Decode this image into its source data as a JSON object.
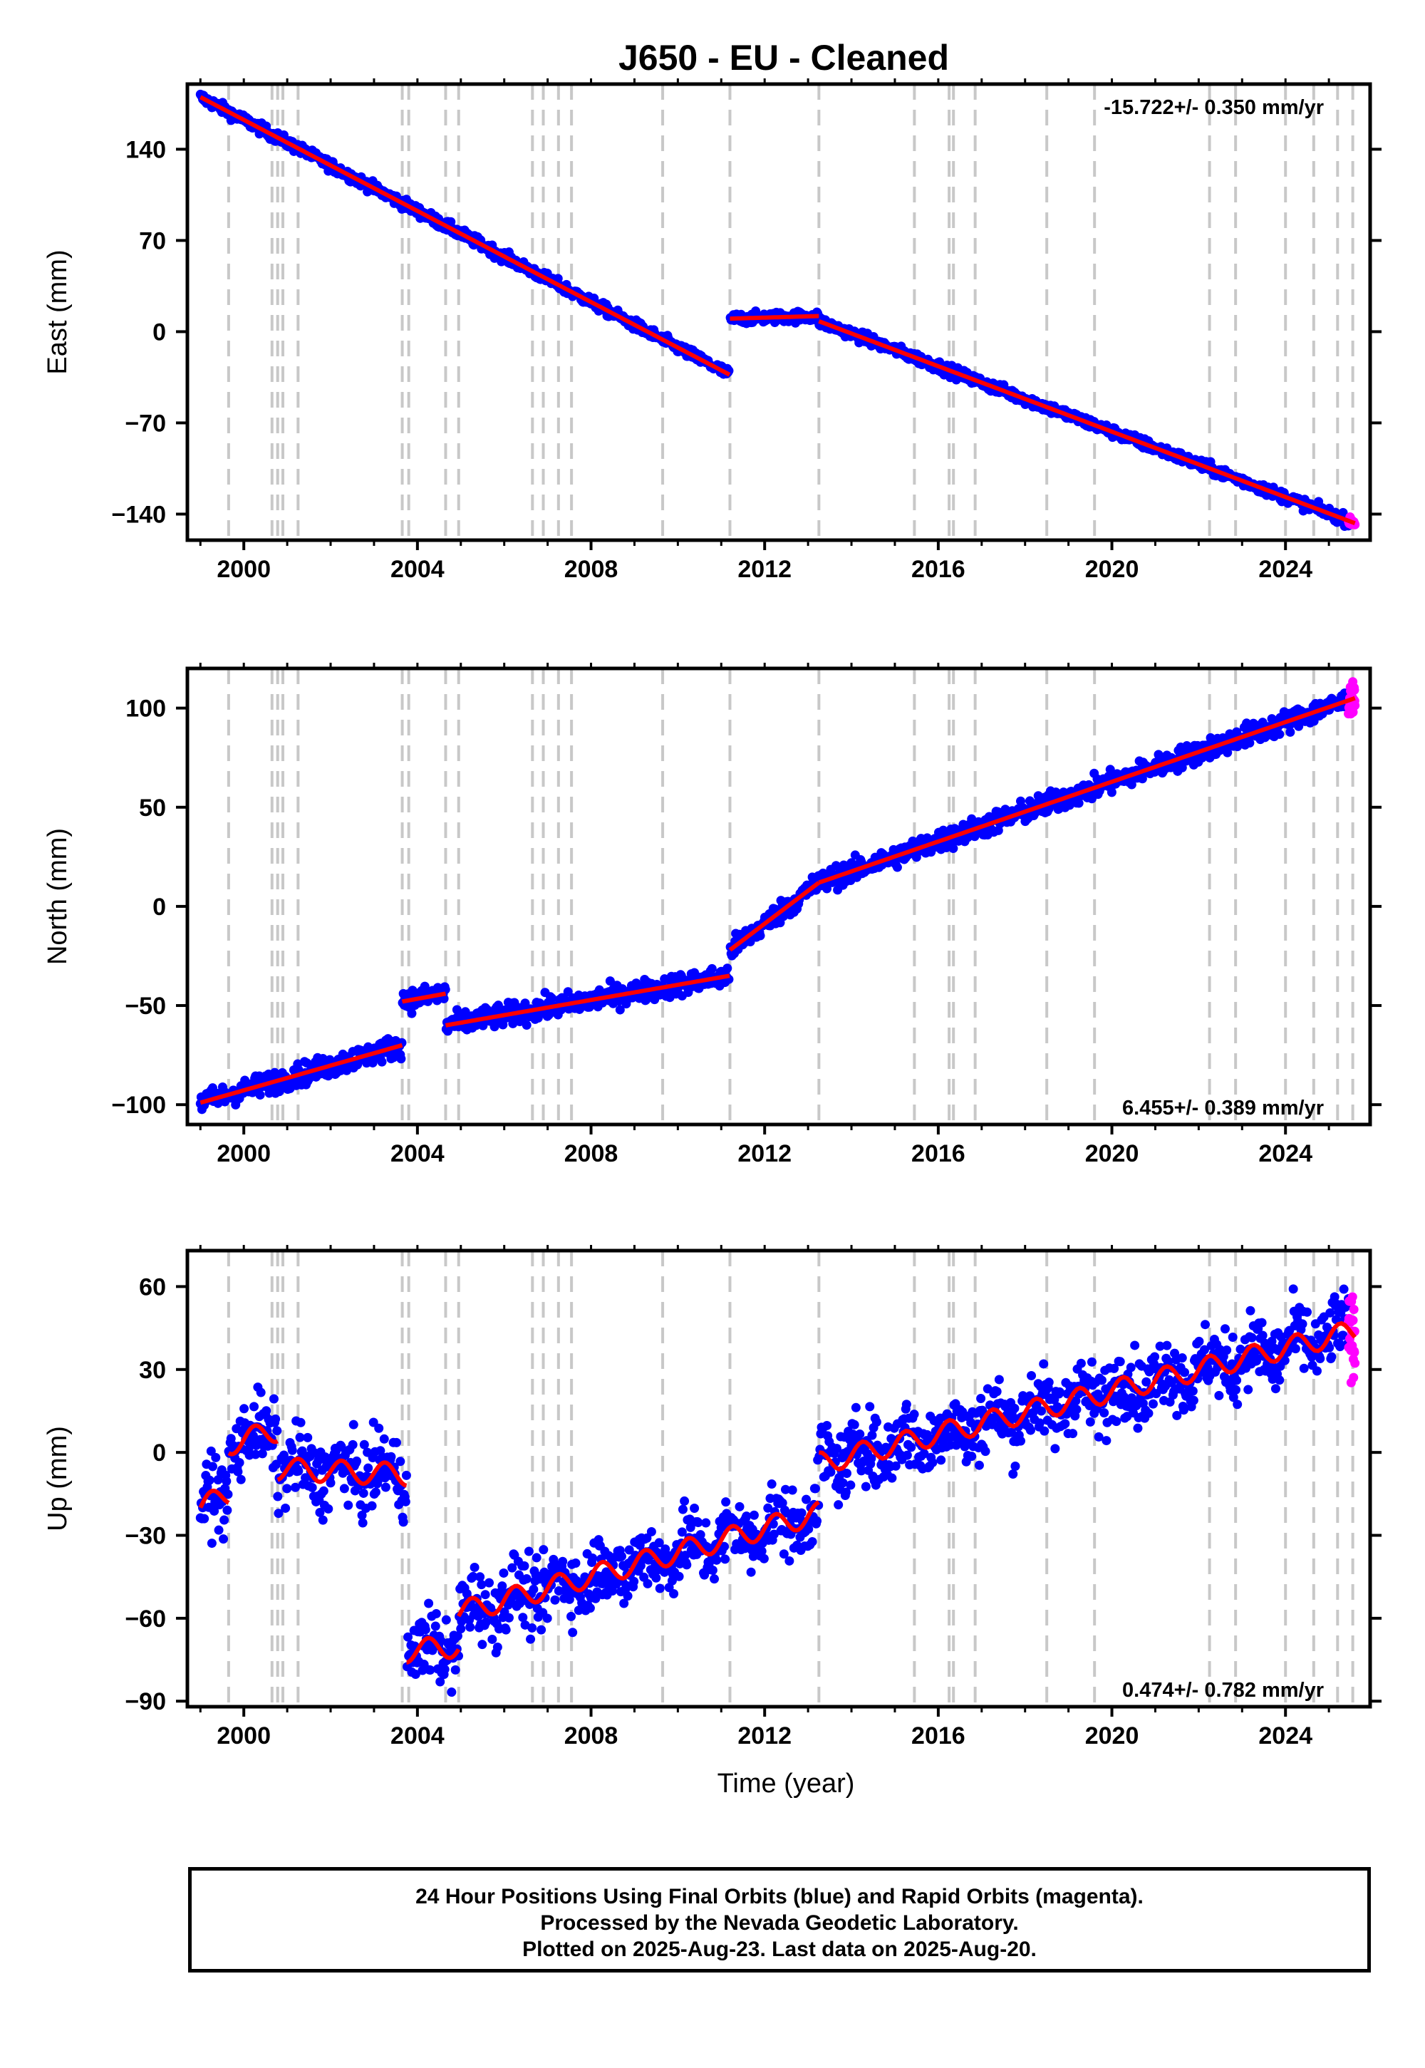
{
  "title": "J650  - EU - Cleaned",
  "footer": {
    "line1": "24 Hour Positions Using Final Orbits (blue) and Rapid Orbits (magenta).",
    "line2": "Processed by the Nevada Geodetic Laboratory.",
    "line3": "Plotted on 2025-Aug-23. Last data on 2025-Aug-20."
  },
  "colors": {
    "final_orbits": "#0000ff",
    "rapid_orbits": "#ff00ff",
    "model": "#ff0000",
    "event_lines": "#c8c8c8"
  },
  "chart_data": [
    {
      "type": "scatter",
      "name": "east",
      "ylabel": "East (mm)",
      "xlabel": "",
      "rate_label": "-15.722+/- 0.350 mm/yr",
      "rate_position": "top-right",
      "xlim": [
        1998.7,
        2025.95
      ],
      "ylim": [
        -160,
        190
      ],
      "xticks": [
        2000,
        2004,
        2008,
        2012,
        2016,
        2020,
        2024
      ],
      "xtick_labels": [
        "2000",
        "2004",
        "2008",
        "2012",
        "2016",
        "2020",
        "2024"
      ],
      "yticks": [
        -140,
        -70,
        0,
        70,
        140
      ],
      "ytick_labels": [
        "−140",
        "−70",
        "0",
        "70",
        "140"
      ],
      "grid": false,
      "event_lines": [
        1999.65,
        2000.65,
        2000.78,
        2000.9,
        2001.25,
        2003.65,
        2003.8,
        2004.65,
        2004.95,
        2006.65,
        2006.9,
        2007.25,
        2007.55,
        2009.65,
        2011.2,
        2013.25,
        2015.45,
        2016.25,
        2016.35,
        2016.85,
        2018.5,
        2019.6,
        2022.25,
        2022.85,
        2024.0,
        2024.65,
        2025.2,
        2025.55
      ],
      "model_segments": [
        {
          "x": [
            1999.0,
            2011.19
          ],
          "y": [
            180,
            -33
          ]
        },
        {
          "x": [
            2011.2,
            2013.25
          ],
          "y": [
            10,
            12
          ]
        },
        {
          "x": [
            2013.25,
            2025.6
          ],
          "y": [
            8,
            -147
          ]
        }
      ],
      "series": [
        {
          "name": "Final Orbits",
          "color": "#0000ff",
          "x_range": [
            1999.0,
            2025.45
          ],
          "scatter_mm": 3
        },
        {
          "name": "Rapid Orbits",
          "color": "#ff00ff",
          "x_range": [
            2025.45,
            2025.6
          ],
          "scatter_mm": 2
        }
      ]
    },
    {
      "type": "scatter",
      "name": "north",
      "ylabel": "North (mm)",
      "xlabel": "",
      "rate_label": "6.455+/- 0.389 mm/yr",
      "rate_position": "bottom-right",
      "xlim": [
        1998.7,
        2025.95
      ],
      "ylim": [
        -110,
        120
      ],
      "xticks": [
        2000,
        2004,
        2008,
        2012,
        2016,
        2020,
        2024
      ],
      "xtick_labels": [
        "2000",
        "2004",
        "2008",
        "2012",
        "2016",
        "2020",
        "2024"
      ],
      "yticks": [
        -100,
        -50,
        0,
        50,
        100
      ],
      "ytick_labels": [
        "−100",
        "−50",
        "0",
        "50",
        "100"
      ],
      "grid": false,
      "event_lines": [
        1999.65,
        2000.65,
        2000.78,
        2000.9,
        2001.25,
        2003.65,
        2003.8,
        2004.65,
        2004.95,
        2006.65,
        2006.9,
        2007.25,
        2007.55,
        2009.65,
        2011.2,
        2013.25,
        2015.45,
        2016.25,
        2016.35,
        2016.85,
        2018.5,
        2019.6,
        2022.25,
        2022.85,
        2024.0,
        2024.65,
        2025.2,
        2025.55
      ],
      "model_segments": [
        {
          "x": [
            1999.0,
            2003.65
          ],
          "y": [
            -99,
            -70
          ]
        },
        {
          "x": [
            2003.65,
            2004.65
          ],
          "y": [
            -48,
            -44
          ]
        },
        {
          "x": [
            2004.65,
            2011.19
          ],
          "y": [
            -60,
            -35
          ]
        },
        {
          "x": [
            2011.2,
            2013.25
          ],
          "y": [
            -22,
            12
          ]
        },
        {
          "x": [
            2013.25,
            2025.6
          ],
          "y": [
            12,
            105
          ]
        }
      ],
      "series": [
        {
          "name": "Final Orbits",
          "color": "#0000ff",
          "x_range": [
            1999.0,
            2025.45
          ],
          "scatter_mm": 4
        },
        {
          "name": "Rapid Orbits",
          "color": "#ff00ff",
          "x_range": [
            2025.45,
            2025.6
          ],
          "scatter_mm": 5
        }
      ]
    },
    {
      "type": "scatter",
      "name": "up",
      "ylabel": "Up (mm)",
      "xlabel": "Time (year)",
      "rate_label": "0.474+/- 0.782 mm/yr",
      "rate_position": "bottom-right",
      "xlim": [
        1998.7,
        2025.95
      ],
      "ylim": [
        -92,
        73
      ],
      "xticks": [
        2000,
        2004,
        2008,
        2012,
        2016,
        2020,
        2024
      ],
      "xtick_labels": [
        "2000",
        "2004",
        "2008",
        "2012",
        "2016",
        "2020",
        "2024"
      ],
      "yticks": [
        -90,
        -60,
        -30,
        0,
        30,
        60
      ],
      "ytick_labels": [
        "−90",
        "−60",
        "−30",
        "0",
        "30",
        "60"
      ],
      "grid": false,
      "event_lines": [
        1999.65,
        2000.65,
        2000.78,
        2000.9,
        2001.25,
        2003.65,
        2003.8,
        2004.65,
        2004.95,
        2006.65,
        2006.9,
        2007.25,
        2007.55,
        2009.65,
        2011.2,
        2013.25,
        2015.45,
        2016.25,
        2016.35,
        2016.85,
        2018.5,
        2019.6,
        2022.25,
        2022.85,
        2024.0,
        2024.65,
        2025.2,
        2025.55
      ],
      "model_segments": [
        {
          "x": [
            1999.0,
            1999.65
          ],
          "y": [
            -20,
            -15
          ]
        },
        {
          "x": [
            1999.65,
            2000.78
          ],
          "y": [
            3,
            8
          ]
        },
        {
          "x": [
            2000.78,
            2003.75
          ],
          "y": [
            -6,
            -8
          ]
        },
        {
          "x": [
            2003.75,
            2004.95
          ],
          "y": [
            -72,
            -70
          ]
        },
        {
          "x": [
            2004.95,
            2013.25
          ],
          "y": [
            -58,
            -22
          ]
        },
        {
          "x": [
            2013.25,
            2025.6
          ],
          "y": [
            -4,
            44
          ]
        }
      ],
      "seasonal_amplitude_mm": 4,
      "series": [
        {
          "name": "Final Orbits",
          "color": "#0000ff",
          "x_range": [
            1999.0,
            2025.45
          ],
          "scatter_mm": 9
        },
        {
          "name": "Rapid Orbits",
          "color": "#ff00ff",
          "x_range": [
            2025.45,
            2025.6
          ],
          "scatter_mm": 10
        }
      ]
    }
  ]
}
